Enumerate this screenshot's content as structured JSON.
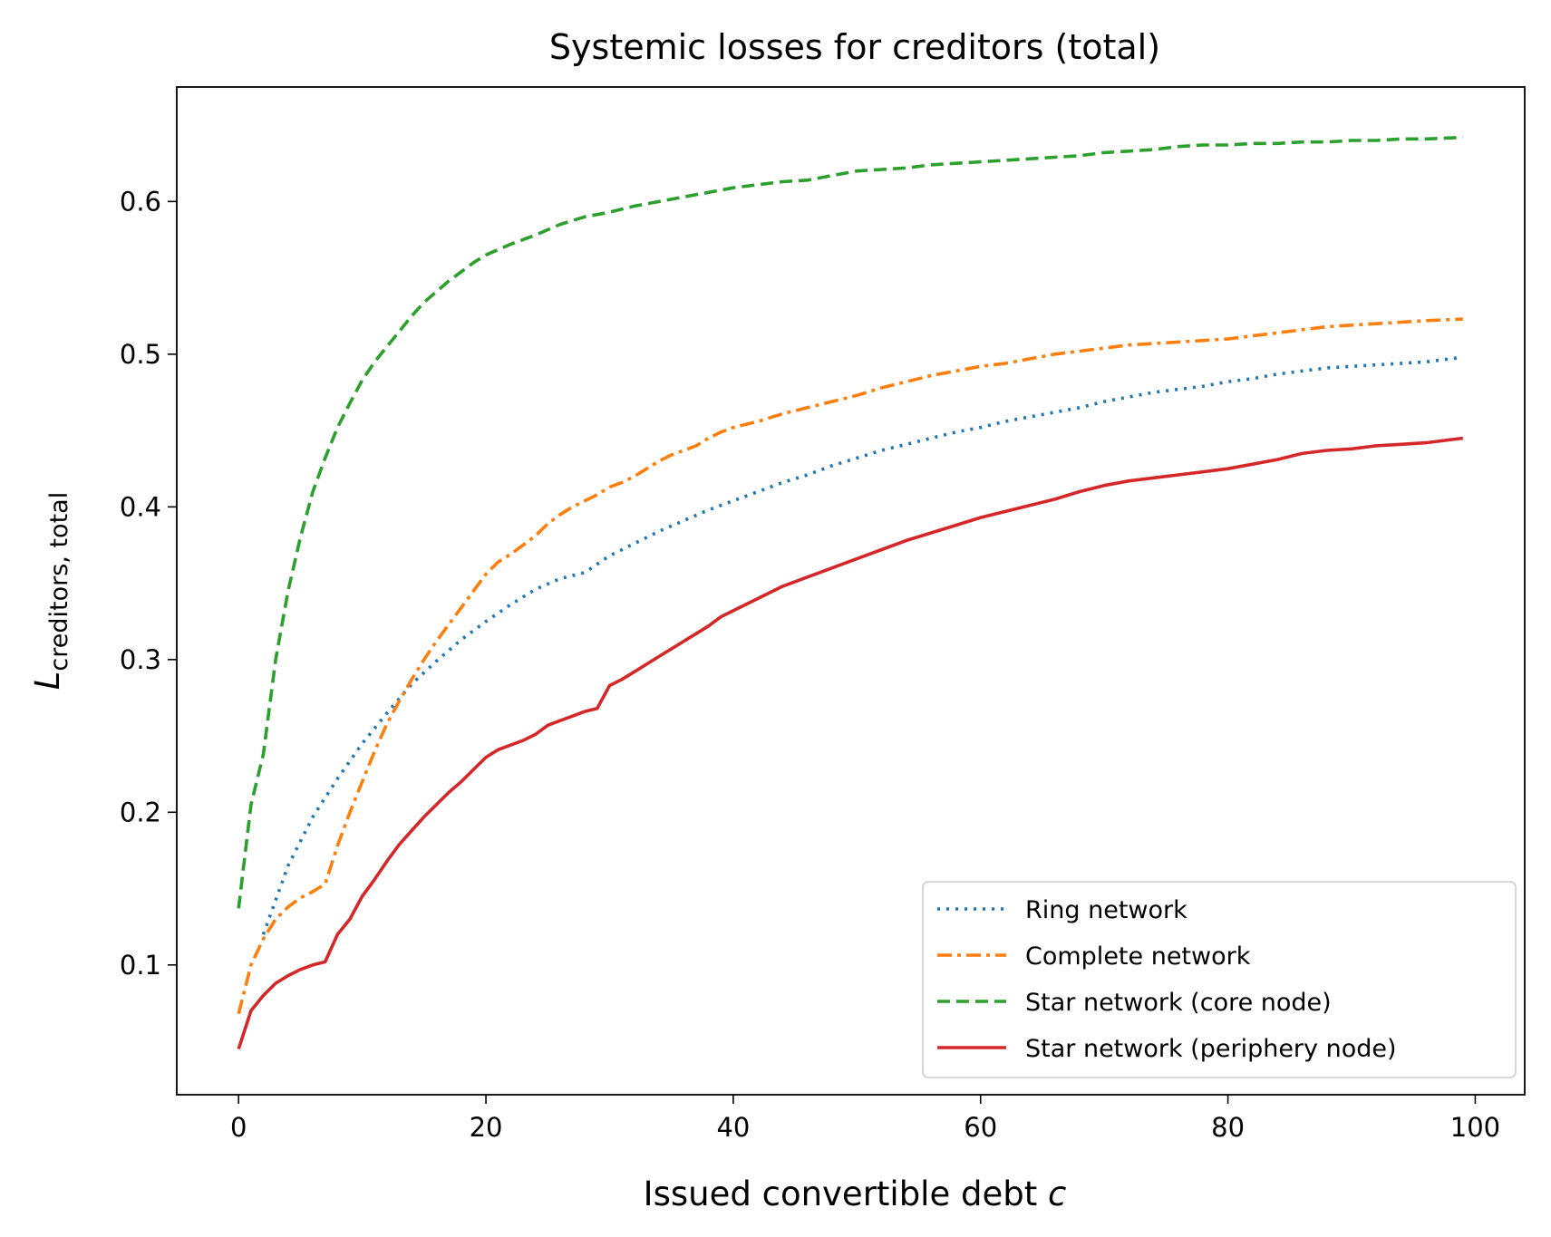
{
  "chart_data": {
    "type": "line",
    "title": "Systemic losses for creditors (total)",
    "xlabel": {
      "main": "Issued convertible debt ",
      "var": "c"
    },
    "ylabel": {
      "main": "L",
      "sub": "creditors, total"
    },
    "xlim": [
      -5,
      104
    ],
    "ylim": [
      0.015,
      0.675
    ],
    "xticks": [
      0,
      20,
      40,
      60,
      80,
      100
    ],
    "xtick_labels": [
      "0",
      "20",
      "40",
      "60",
      "80",
      "100"
    ],
    "yticks": [
      0.1,
      0.2,
      0.3,
      0.4,
      0.5,
      0.6
    ],
    "ytick_labels": [
      "0.1",
      "0.2",
      "0.3",
      "0.4",
      "0.5",
      "0.6"
    ],
    "grid": false,
    "legend_position": "lower-right",
    "series": [
      {
        "name": "Ring network",
        "color": "#1f77b4",
        "style": "dotted",
        "points": [
          [
            2,
            0.12
          ],
          [
            4,
            0.165
          ],
          [
            6,
            0.197
          ],
          [
            8,
            0.222
          ],
          [
            10,
            0.245
          ],
          [
            12,
            0.265
          ],
          [
            14,
            0.284
          ],
          [
            16,
            0.299
          ],
          [
            18,
            0.313
          ],
          [
            20,
            0.325
          ],
          [
            22,
            0.336
          ],
          [
            24,
            0.346
          ],
          [
            26,
            0.353
          ],
          [
            28,
            0.357
          ],
          [
            30,
            0.368
          ],
          [
            32,
            0.376
          ],
          [
            34,
            0.384
          ],
          [
            36,
            0.391
          ],
          [
            38,
            0.398
          ],
          [
            40,
            0.404
          ],
          [
            42,
            0.41
          ],
          [
            44,
            0.416
          ],
          [
            46,
            0.421
          ],
          [
            48,
            0.427
          ],
          [
            50,
            0.432
          ],
          [
            52,
            0.437
          ],
          [
            54,
            0.441
          ],
          [
            56,
            0.445
          ],
          [
            58,
            0.449
          ],
          [
            60,
            0.452
          ],
          [
            62,
            0.456
          ],
          [
            64,
            0.459
          ],
          [
            66,
            0.462
          ],
          [
            68,
            0.465
          ],
          [
            70,
            0.469
          ],
          [
            72,
            0.472
          ],
          [
            74,
            0.475
          ],
          [
            76,
            0.477
          ],
          [
            78,
            0.479
          ],
          [
            80,
            0.482
          ],
          [
            82,
            0.484
          ],
          [
            84,
            0.487
          ],
          [
            86,
            0.489
          ],
          [
            88,
            0.491
          ],
          [
            90,
            0.492
          ],
          [
            92,
            0.493
          ],
          [
            94,
            0.494
          ],
          [
            96,
            0.495
          ],
          [
            98,
            0.497
          ],
          [
            99,
            0.498
          ]
        ]
      },
      {
        "name": "Complete network",
        "color": "#ff7f0e",
        "style": "dashdot",
        "points": [
          [
            0,
            0.068
          ],
          [
            1,
            0.1
          ],
          [
            2,
            0.117
          ],
          [
            3,
            0.13
          ],
          [
            4,
            0.138
          ],
          [
            5,
            0.144
          ],
          [
            6,
            0.148
          ],
          [
            7,
            0.153
          ],
          [
            8,
            0.178
          ],
          [
            9,
            0.2
          ],
          [
            10,
            0.22
          ],
          [
            11,
            0.24
          ],
          [
            12,
            0.258
          ],
          [
            13,
            0.273
          ],
          [
            14,
            0.287
          ],
          [
            15,
            0.3
          ],
          [
            16,
            0.312
          ],
          [
            17,
            0.323
          ],
          [
            18,
            0.334
          ],
          [
            19,
            0.345
          ],
          [
            20,
            0.356
          ],
          [
            21,
            0.364
          ],
          [
            22,
            0.369
          ],
          [
            23,
            0.375
          ],
          [
            24,
            0.381
          ],
          [
            25,
            0.389
          ],
          [
            26,
            0.395
          ],
          [
            27,
            0.4
          ],
          [
            28,
            0.404
          ],
          [
            29,
            0.408
          ],
          [
            30,
            0.413
          ],
          [
            31,
            0.416
          ],
          [
            32,
            0.42
          ],
          [
            33,
            0.425
          ],
          [
            34,
            0.43
          ],
          [
            35,
            0.434
          ],
          [
            36,
            0.437
          ],
          [
            37,
            0.44
          ],
          [
            38,
            0.445
          ],
          [
            39,
            0.449
          ],
          [
            40,
            0.452
          ],
          [
            42,
            0.456
          ],
          [
            44,
            0.461
          ],
          [
            46,
            0.465
          ],
          [
            48,
            0.469
          ],
          [
            50,
            0.473
          ],
          [
            52,
            0.478
          ],
          [
            54,
            0.482
          ],
          [
            56,
            0.486
          ],
          [
            58,
            0.489
          ],
          [
            60,
            0.492
          ],
          [
            62,
            0.494
          ],
          [
            64,
            0.497
          ],
          [
            66,
            0.5
          ],
          [
            68,
            0.502
          ],
          [
            70,
            0.504
          ],
          [
            72,
            0.506
          ],
          [
            74,
            0.507
          ],
          [
            76,
            0.508
          ],
          [
            78,
            0.509
          ],
          [
            80,
            0.51
          ],
          [
            82,
            0.512
          ],
          [
            84,
            0.514
          ],
          [
            86,
            0.516
          ],
          [
            88,
            0.518
          ],
          [
            90,
            0.519
          ],
          [
            92,
            0.52
          ],
          [
            94,
            0.521
          ],
          [
            96,
            0.522
          ],
          [
            99,
            0.523
          ]
        ]
      },
      {
        "name": "Star network (core node)",
        "color": "#2ca02c",
        "style": "dashed",
        "points": [
          [
            0,
            0.137
          ],
          [
            1,
            0.205
          ],
          [
            2,
            0.238
          ],
          [
            3,
            0.3
          ],
          [
            4,
            0.345
          ],
          [
            5,
            0.38
          ],
          [
            6,
            0.41
          ],
          [
            7,
            0.432
          ],
          [
            8,
            0.452
          ],
          [
            9,
            0.468
          ],
          [
            10,
            0.483
          ],
          [
            11,
            0.495
          ],
          [
            12,
            0.505
          ],
          [
            13,
            0.515
          ],
          [
            14,
            0.525
          ],
          [
            15,
            0.534
          ],
          [
            16,
            0.541
          ],
          [
            17,
            0.548
          ],
          [
            18,
            0.554
          ],
          [
            19,
            0.56
          ],
          [
            20,
            0.565
          ],
          [
            22,
            0.572
          ],
          [
            24,
            0.578
          ],
          [
            26,
            0.585
          ],
          [
            28,
            0.59
          ],
          [
            30,
            0.593
          ],
          [
            32,
            0.597
          ],
          [
            34,
            0.6
          ],
          [
            36,
            0.603
          ],
          [
            38,
            0.606
          ],
          [
            40,
            0.609
          ],
          [
            42,
            0.611
          ],
          [
            44,
            0.613
          ],
          [
            46,
            0.614
          ],
          [
            48,
            0.617
          ],
          [
            50,
            0.62
          ],
          [
            52,
            0.621
          ],
          [
            54,
            0.622
          ],
          [
            56,
            0.624
          ],
          [
            58,
            0.625
          ],
          [
            60,
            0.626
          ],
          [
            62,
            0.627
          ],
          [
            64,
            0.628
          ],
          [
            66,
            0.629
          ],
          [
            68,
            0.63
          ],
          [
            70,
            0.632
          ],
          [
            72,
            0.633
          ],
          [
            74,
            0.634
          ],
          [
            76,
            0.636
          ],
          [
            78,
            0.637
          ],
          [
            80,
            0.637
          ],
          [
            82,
            0.638
          ],
          [
            84,
            0.638
          ],
          [
            86,
            0.639
          ],
          [
            88,
            0.639
          ],
          [
            90,
            0.64
          ],
          [
            92,
            0.64
          ],
          [
            94,
            0.641
          ],
          [
            96,
            0.641
          ],
          [
            99,
            0.642
          ]
        ]
      },
      {
        "name": "Star network (periphery node)",
        "color": "#d62728",
        "style": "solid",
        "points": [
          [
            0,
            0.045
          ],
          [
            1,
            0.07
          ],
          [
            2,
            0.08
          ],
          [
            3,
            0.088
          ],
          [
            4,
            0.093
          ],
          [
            5,
            0.097
          ],
          [
            6,
            0.1
          ],
          [
            7,
            0.102
          ],
          [
            8,
            0.12
          ],
          [
            9,
            0.13
          ],
          [
            10,
            0.145
          ],
          [
            11,
            0.156
          ],
          [
            12,
            0.168
          ],
          [
            13,
            0.179
          ],
          [
            14,
            0.188
          ],
          [
            15,
            0.197
          ],
          [
            16,
            0.205
          ],
          [
            17,
            0.213
          ],
          [
            18,
            0.22
          ],
          [
            19,
            0.228
          ],
          [
            20,
            0.236
          ],
          [
            21,
            0.241
          ],
          [
            22,
            0.244
          ],
          [
            23,
            0.247
          ],
          [
            24,
            0.251
          ],
          [
            25,
            0.257
          ],
          [
            26,
            0.26
          ],
          [
            27,
            0.263
          ],
          [
            28,
            0.266
          ],
          [
            29,
            0.268
          ],
          [
            30,
            0.283
          ],
          [
            31,
            0.287
          ],
          [
            32,
            0.292
          ],
          [
            33,
            0.297
          ],
          [
            34,
            0.302
          ],
          [
            35,
            0.307
          ],
          [
            36,
            0.312
          ],
          [
            37,
            0.317
          ],
          [
            38,
            0.322
          ],
          [
            39,
            0.328
          ],
          [
            40,
            0.332
          ],
          [
            42,
            0.34
          ],
          [
            44,
            0.348
          ],
          [
            46,
            0.354
          ],
          [
            48,
            0.36
          ],
          [
            50,
            0.366
          ],
          [
            52,
            0.372
          ],
          [
            54,
            0.378
          ],
          [
            56,
            0.383
          ],
          [
            58,
            0.388
          ],
          [
            60,
            0.393
          ],
          [
            62,
            0.397
          ],
          [
            64,
            0.401
          ],
          [
            66,
            0.405
          ],
          [
            68,
            0.41
          ],
          [
            70,
            0.414
          ],
          [
            72,
            0.417
          ],
          [
            74,
            0.419
          ],
          [
            76,
            0.421
          ],
          [
            78,
            0.423
          ],
          [
            80,
            0.425
          ],
          [
            82,
            0.428
          ],
          [
            84,
            0.431
          ],
          [
            86,
            0.435
          ],
          [
            88,
            0.437
          ],
          [
            90,
            0.438
          ],
          [
            92,
            0.44
          ],
          [
            94,
            0.441
          ],
          [
            96,
            0.442
          ],
          [
            99,
            0.445
          ]
        ]
      }
    ]
  }
}
